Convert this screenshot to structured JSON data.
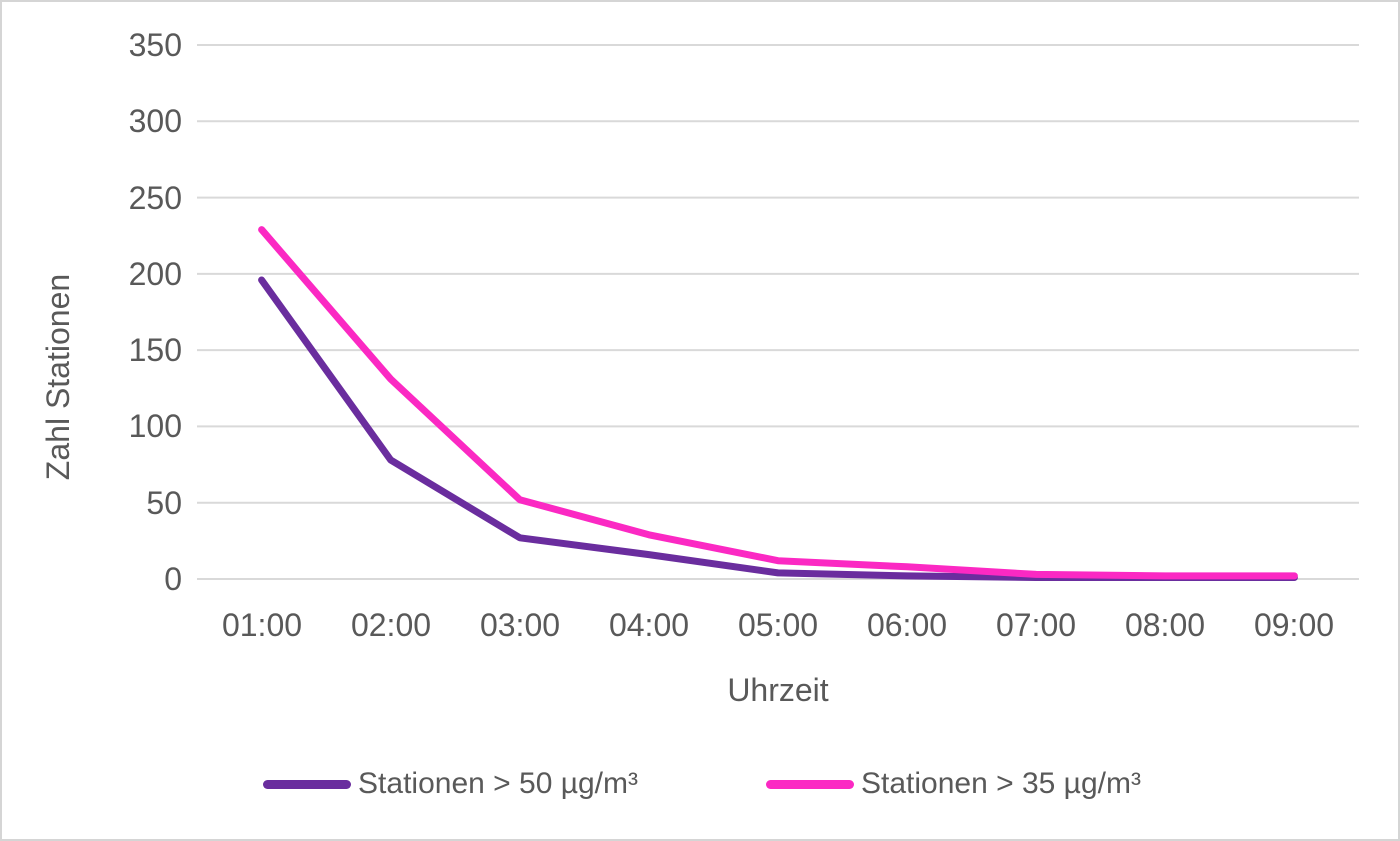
{
  "chart_data": {
    "type": "line",
    "title": "",
    "xlabel": "Uhrzeit",
    "ylabel": "Zahl Stationen",
    "categories": [
      "01:00",
      "02:00",
      "03:00",
      "04:00",
      "05:00",
      "06:00",
      "07:00",
      "08:00",
      "09:00"
    ],
    "series": [
      {
        "name": "Stationen > 50 µg/m³",
        "color": "#6A2D9E",
        "values": [
          196,
          78,
          27,
          16,
          4,
          2,
          1,
          1,
          1
        ]
      },
      {
        "name": "Stationen > 35 µg/m³",
        "color": "#FB29C3",
        "values": [
          229,
          131,
          52,
          29,
          12,
          8,
          3,
          2,
          2
        ]
      }
    ],
    "ylim": [
      0,
      350
    ],
    "yticks": [
      350,
      300,
      250,
      200,
      150,
      100,
      50,
      0
    ],
    "grid": "horizontal-only",
    "legend_position": "bottom"
  },
  "colors": {
    "grid": "#D9D9D9",
    "text": "#595959",
    "frame": "#D5D5D5",
    "background": "#FFFFFF"
  }
}
